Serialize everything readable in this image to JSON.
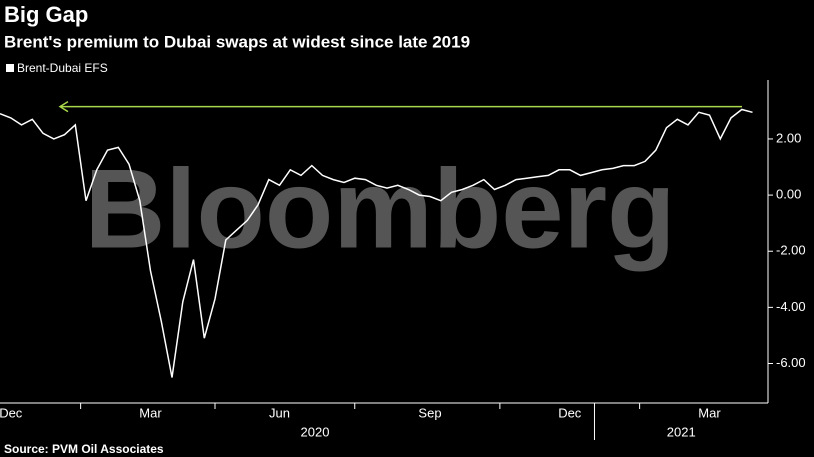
{
  "chart_data": {
    "type": "line",
    "title": "Big Gap",
    "subtitle": "Brent's premium to Dubai swaps at widest since late 2019",
    "watermark": "Bloomberg",
    "source": "Source: PVM Oil Associates",
    "categories": [
      null,
      "Dec",
      null,
      null,
      null,
      null,
      null,
      null,
      null,
      null,
      null,
      null,
      null,
      null,
      "Mar",
      null,
      null,
      null,
      null,
      null,
      null,
      null,
      null,
      null,
      null,
      null,
      "Jun",
      null,
      null,
      null,
      null,
      null,
      null,
      null,
      null,
      null,
      null,
      null,
      null,
      null,
      "Sep",
      null,
      null,
      null,
      null,
      null,
      null,
      null,
      null,
      null,
      null,
      null,
      null,
      "Dec",
      null,
      null,
      null,
      null,
      null,
      null,
      null,
      null,
      null,
      null,
      null,
      null,
      "Mar",
      null,
      null,
      null,
      null
    ],
    "year_labels": [
      "2020",
      "2021"
    ],
    "series": [
      {
        "name": "Brent-Dubai EFS",
        "color": "#ffffff",
        "values": [
          2.9,
          2.75,
          2.5,
          2.7,
          2.2,
          2.0,
          2.15,
          2.5,
          -0.2,
          0.9,
          1.6,
          1.7,
          1.1,
          -0.2,
          -2.7,
          -4.5,
          -6.5,
          -3.8,
          -2.3,
          -5.1,
          -3.7,
          -1.6,
          -1.25,
          -0.9,
          -0.35,
          0.55,
          0.35,
          0.9,
          0.7,
          1.05,
          0.7,
          0.55,
          0.45,
          0.6,
          0.55,
          0.35,
          0.25,
          0.35,
          0.2,
          0,
          -0.05,
          -0.2,
          0.1,
          0.2,
          0.35,
          0.55,
          0.2,
          0.35,
          0.55,
          0.6,
          0.65,
          0.7,
          0.9,
          0.9,
          0.7,
          0.8,
          0.9,
          0.95,
          1.05,
          1.05,
          1.2,
          1.6,
          2.4,
          2.7,
          2.5,
          2.95,
          2.85,
          2.0,
          2.75,
          3.05,
          2.95
        ]
      }
    ],
    "annotation_level": 3.15,
    "annotation_color": "#a8d84a",
    "ylim": [
      -7.3,
      4.1
    ],
    "yticks": [
      {
        "value": 2,
        "label": "2.00"
      },
      {
        "value": 0,
        "label": "0.00"
      },
      {
        "value": -2,
        "label": "-2.00"
      },
      {
        "value": -4,
        "label": "-4.00"
      },
      {
        "value": -6,
        "label": "-6.00"
      }
    ],
    "legend": "top-left"
  }
}
